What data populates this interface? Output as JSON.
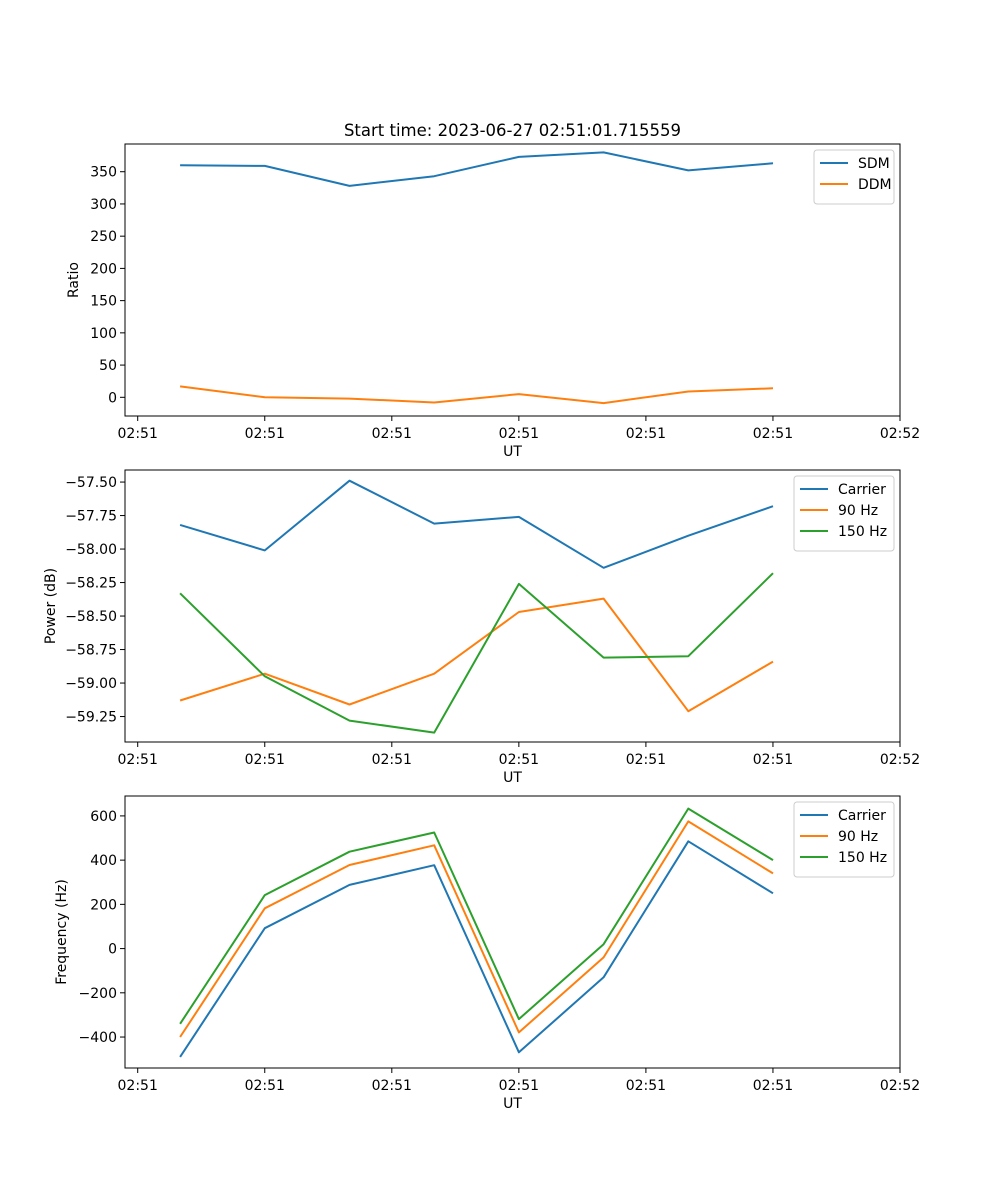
{
  "figure": {
    "title": "Start time: 2023-06-27 02:51:01.715559"
  },
  "chart_data": [
    {
      "type": "line",
      "title": "Start time: 2023-06-27 02:51:01.715559",
      "xlabel": "UT",
      "ylabel": "Ratio",
      "x": [
        1,
        2,
        3,
        4,
        5,
        6,
        7,
        8
      ],
      "xlim": [
        0.35,
        9.5
      ],
      "x_ticks": [
        0.5,
        2,
        3.5,
        5,
        6.5,
        8,
        9.5
      ],
      "x_tick_labels": [
        "02:51",
        "02:51",
        "02:51",
        "02:51",
        "02:51",
        "02:51",
        "02:52"
      ],
      "ylim": [
        -29,
        393
      ],
      "y_ticks": [
        0,
        50,
        100,
        150,
        200,
        250,
        300,
        350
      ],
      "y_tick_labels": [
        "0",
        "50",
        "100",
        "150",
        "200",
        "250",
        "300",
        "350"
      ],
      "grid": false,
      "legend": "upper-right",
      "series": [
        {
          "name": "SDM",
          "color": "#1f77b4",
          "values": [
            360,
            359,
            328,
            343,
            373,
            380,
            352,
            363
          ]
        },
        {
          "name": "DDM",
          "color": "#ff7f0e",
          "values": [
            17,
            0,
            -2,
            -8,
            5,
            -9,
            9,
            14
          ]
        }
      ]
    },
    {
      "type": "line",
      "xlabel": "UT",
      "ylabel": "Power (dB)",
      "x": [
        1,
        2,
        3,
        4,
        5,
        6,
        7,
        8
      ],
      "xlim": [
        0.35,
        9.5
      ],
      "x_ticks": [
        0.5,
        2,
        3.5,
        5,
        6.5,
        8,
        9.5
      ],
      "x_tick_labels": [
        "02:51",
        "02:51",
        "02:51",
        "02:51",
        "02:51",
        "02:51",
        "02:52"
      ],
      "ylim": [
        -59.44,
        -57.41
      ],
      "y_ticks": [
        -59.25,
        -59.0,
        -58.75,
        -58.5,
        -58.25,
        -58.0,
        -57.75,
        -57.5
      ],
      "y_tick_labels": [
        "−59.25",
        "−59.00",
        "−58.75",
        "−58.50",
        "−58.25",
        "−58.00",
        "−57.75",
        "−57.50"
      ],
      "grid": false,
      "legend": "upper-right",
      "series": [
        {
          "name": "Carrier",
          "color": "#1f77b4",
          "values": [
            -57.82,
            -58.01,
            -57.49,
            -57.81,
            -57.76,
            -58.14,
            -57.9,
            -57.68
          ]
        },
        {
          "name": "90 Hz",
          "color": "#ff7f0e",
          "values": [
            -59.13,
            -58.93,
            -59.16,
            -58.93,
            -58.47,
            -58.37,
            -59.21,
            -58.84
          ]
        },
        {
          "name": "150 Hz",
          "color": "#2ca02c",
          "values": [
            -58.33,
            -58.95,
            -59.28,
            -59.37,
            -58.26,
            -58.81,
            -58.8,
            -58.18
          ]
        }
      ]
    },
    {
      "type": "line",
      "xlabel": "UT",
      "ylabel": "Frequency (Hz)",
      "x": [
        1,
        2,
        3,
        4,
        5,
        6,
        7,
        8
      ],
      "xlim": [
        0.35,
        9.5
      ],
      "x_ticks": [
        0.5,
        2,
        3.5,
        5,
        6.5,
        8,
        9.5
      ],
      "x_tick_labels": [
        "02:51",
        "02:51",
        "02:51",
        "02:51",
        "02:51",
        "02:51",
        "02:52"
      ],
      "ylim": [
        -540,
        690
      ],
      "y_ticks": [
        -400,
        -200,
        0,
        200,
        400,
        600
      ],
      "y_tick_labels": [
        "−400",
        "−200",
        "0",
        "200",
        "400",
        "600"
      ],
      "grid": false,
      "legend": "upper-right",
      "series": [
        {
          "name": "Carrier",
          "color": "#1f77b4",
          "values": [
            -490,
            92,
            288,
            377,
            -469,
            -130,
            485,
            250
          ]
        },
        {
          "name": "90 Hz",
          "color": "#ff7f0e",
          "values": [
            -400,
            182,
            378,
            467,
            -379,
            -40,
            575,
            340
          ]
        },
        {
          "name": "150 Hz",
          "color": "#2ca02c",
          "values": [
            -340,
            242,
            438,
            525,
            -319,
            20,
            633,
            400
          ]
        }
      ]
    }
  ]
}
